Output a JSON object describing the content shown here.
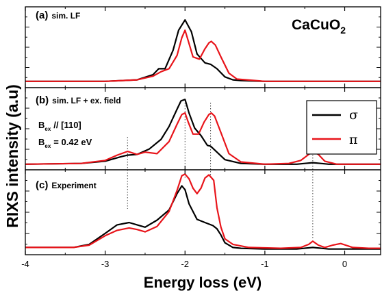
{
  "chart_data": {
    "type": "line",
    "ylabel": "RIXS intensity  (a.u)",
    "xlabel": "Energy loss  (eV)",
    "xlim": [
      -4,
      0.45
    ],
    "xticks": [
      "-4",
      "-3",
      "-2",
      "-1",
      "0"
    ],
    "compound": {
      "base": "CaCuO",
      "sub": "2"
    },
    "legend": [
      {
        "name": "σ",
        "color": "#000000"
      },
      {
        "name": "π",
        "color": "#e8141a"
      }
    ],
    "reference_lines_x": [
      -2.72,
      -2.0,
      -1.68,
      -0.4
    ],
    "panels": [
      {
        "id": "a",
        "label_letter": "(a)",
        "label_text": "sim. LF",
        "ylim": [
          0,
          1.0
        ],
        "series": [
          {
            "name": "σ",
            "color": "#000000",
            "x": [
              -4.0,
              -3.0,
              -2.6,
              -2.4,
              -2.33,
              -2.25,
              -2.15,
              -2.08,
              -2.0,
              -1.92,
              -1.85,
              -1.75,
              -1.68,
              -1.6,
              -1.5,
              -1.4,
              -1.3,
              -1.0,
              -0.5,
              0.0,
              0.45
            ],
            "y": [
              0.03,
              0.03,
              0.05,
              0.12,
              0.2,
              0.2,
              0.45,
              0.72,
              0.86,
              0.7,
              0.4,
              0.28,
              0.26,
              0.2,
              0.09,
              0.05,
              0.04,
              0.03,
              0.03,
              0.03,
              0.03
            ]
          },
          {
            "name": "π",
            "color": "#e8141a",
            "x": [
              -4.0,
              -3.0,
              -2.6,
              -2.4,
              -2.3,
              -2.2,
              -2.1,
              -2.04,
              -2.0,
              -1.96,
              -1.9,
              -1.82,
              -1.75,
              -1.7,
              -1.67,
              -1.62,
              -1.55,
              -1.45,
              -1.35,
              -1.0,
              -0.5,
              0.0,
              0.45
            ],
            "y": [
              0.03,
              0.03,
              0.05,
              0.1,
              0.16,
              0.2,
              0.38,
              0.62,
              0.72,
              0.58,
              0.36,
              0.33,
              0.47,
              0.55,
              0.57,
              0.52,
              0.36,
              0.14,
              0.06,
              0.03,
              0.03,
              0.03,
              0.03
            ]
          }
        ]
      },
      {
        "id": "b",
        "label_letter": "(b)",
        "label_text": "sim. LF + ex. field",
        "annotations": [
          {
            "main": "B",
            "sub": "ex",
            "rest": "//  [110]"
          },
          {
            "main": "B",
            "sub": "ex",
            "rest": "=  0.42 eV"
          }
        ],
        "ylim": [
          0,
          1.0
        ],
        "series": [
          {
            "name": "σ",
            "color": "#000000",
            "x": [
              -4.0,
              -3.3,
              -3.0,
              -2.8,
              -2.72,
              -2.6,
              -2.45,
              -2.3,
              -2.2,
              -2.1,
              -2.05,
              -2.0,
              -1.95,
              -1.88,
              -1.8,
              -1.72,
              -1.68,
              -1.6,
              -1.5,
              -1.3,
              -1.0,
              -0.6,
              -0.5,
              -0.4,
              -0.3,
              -0.2,
              0.0,
              0.45
            ],
            "y": [
              0.02,
              0.03,
              0.06,
              0.12,
              0.14,
              0.15,
              0.22,
              0.35,
              0.52,
              0.75,
              0.86,
              0.88,
              0.7,
              0.5,
              0.4,
              0.27,
              0.26,
              0.18,
              0.08,
              0.03,
              0.02,
              0.02,
              0.03,
              0.04,
              0.03,
              0.02,
              0.02,
              0.02
            ]
          },
          {
            "name": "π",
            "color": "#e8141a",
            "x": [
              -4.0,
              -3.3,
              -3.0,
              -2.85,
              -2.72,
              -2.6,
              -2.5,
              -2.35,
              -2.2,
              -2.1,
              -2.04,
              -2.0,
              -1.96,
              -1.9,
              -1.83,
              -1.76,
              -1.7,
              -1.67,
              -1.63,
              -1.55,
              -1.45,
              -1.3,
              -1.0,
              -0.7,
              -0.55,
              -0.45,
              -0.4,
              -0.33,
              -0.25,
              -0.1,
              0.0,
              0.45
            ],
            "y": [
              0.02,
              0.03,
              0.07,
              0.14,
              0.19,
              0.15,
              0.18,
              0.16,
              0.32,
              0.55,
              0.68,
              0.7,
              0.58,
              0.42,
              0.42,
              0.58,
              0.68,
              0.7,
              0.66,
              0.44,
              0.16,
              0.05,
              0.02,
              0.03,
              0.07,
              0.15,
              0.19,
              0.15,
              0.06,
              0.02,
              0.02,
              0.02
            ]
          }
        ]
      },
      {
        "id": "c",
        "label_letter": "(c)",
        "label_text": "Experiment",
        "ylim": [
          0,
          1.0
        ],
        "series": [
          {
            "name": "σ",
            "color": "#000000",
            "x": [
              -4.0,
              -3.4,
              -3.2,
              -3.0,
              -2.85,
              -2.7,
              -2.6,
              -2.5,
              -2.35,
              -2.2,
              -2.1,
              -2.04,
              -2.0,
              -1.95,
              -1.85,
              -1.75,
              -1.65,
              -1.6,
              -1.55,
              -1.5,
              -1.4,
              -1.3,
              -1.0,
              -0.6,
              -0.4,
              -0.2,
              0.0,
              0.45
            ],
            "y": [
              0.04,
              0.04,
              0.08,
              0.22,
              0.33,
              0.36,
              0.33,
              0.3,
              0.39,
              0.52,
              0.73,
              0.83,
              0.78,
              0.6,
              0.4,
              0.36,
              0.32,
              0.28,
              0.2,
              0.1,
              0.04,
              0.03,
              0.02,
              0.02,
              0.04,
              0.02,
              0.02,
              0.02
            ]
          },
          {
            "name": "π",
            "color": "#e8141a",
            "x": [
              -4.0,
              -3.4,
              -3.2,
              -3.0,
              -2.85,
              -2.7,
              -2.6,
              -2.5,
              -2.35,
              -2.2,
              -2.1,
              -2.04,
              -2.0,
              -1.95,
              -1.9,
              -1.85,
              -1.8,
              -1.75,
              -1.7,
              -1.64,
              -1.6,
              -1.55,
              -1.5,
              -1.4,
              -1.2,
              -0.8,
              -0.55,
              -0.45,
              -0.4,
              -0.33,
              -0.25,
              -0.15,
              -0.05,
              0.1,
              0.3,
              0.45
            ],
            "y": [
              0.04,
              0.04,
              0.07,
              0.19,
              0.26,
              0.29,
              0.27,
              0.24,
              0.31,
              0.5,
              0.77,
              0.96,
              0.98,
              0.92,
              0.8,
              0.73,
              0.8,
              0.93,
              0.97,
              0.9,
              0.55,
              0.3,
              0.15,
              0.08,
              0.04,
              0.03,
              0.04,
              0.08,
              0.12,
              0.07,
              0.04,
              0.07,
              0.09,
              0.04,
              0.03,
              0.03
            ]
          }
        ]
      }
    ]
  }
}
